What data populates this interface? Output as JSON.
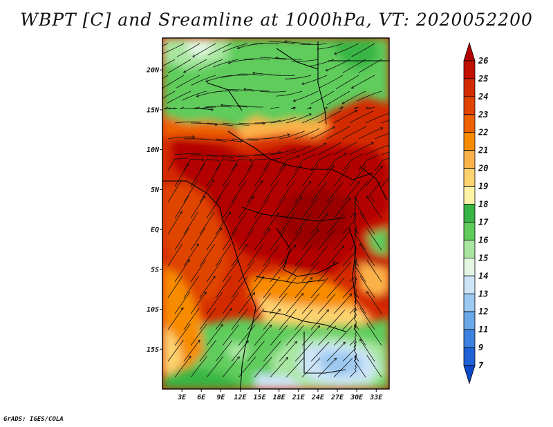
{
  "title": "WBPT [C] and Sreamline at 1000hPa, VT: 2020052200",
  "footer": "GrADS: IGES/COLA",
  "map": {
    "lon_range": [
      0,
      35
    ],
    "lat_range": [
      -20,
      24
    ],
    "lon_ticks": [
      "3E",
      "6E",
      "9E",
      "12E",
      "15E",
      "18E",
      "21E",
      "24E",
      "27E",
      "30E",
      "33E"
    ],
    "lon_values": [
      3,
      6,
      9,
      12,
      15,
      18,
      21,
      24,
      27,
      30,
      33
    ],
    "lat_ticks": [
      "20N",
      "15N",
      "10N",
      "5N",
      "EQ",
      "5S",
      "10S",
      "15S"
    ],
    "lat_values": [
      20,
      15,
      10,
      5,
      0,
      -5,
      -10,
      -15
    ]
  },
  "colorbar": {
    "levels": [
      "26",
      "25",
      "24",
      "23",
      "22",
      "21",
      "20",
      "19",
      "18",
      "17",
      "16",
      "15",
      "14",
      "13",
      "12",
      "11",
      "9",
      "7"
    ],
    "colors": [
      "#b30000",
      "#c21000",
      "#d42a00",
      "#e04400",
      "#ee6300",
      "#f88c00",
      "#fbb24a",
      "#fdd36f",
      "#fff3a8",
      "#39b545",
      "#5fcc5b",
      "#a9e6a0",
      "#e5f7e3",
      "#cde5f7",
      "#9cc9f1",
      "#6aa8ea",
      "#3d82e0",
      "#1f62d6",
      "#0a4ac8"
    ]
  }
}
